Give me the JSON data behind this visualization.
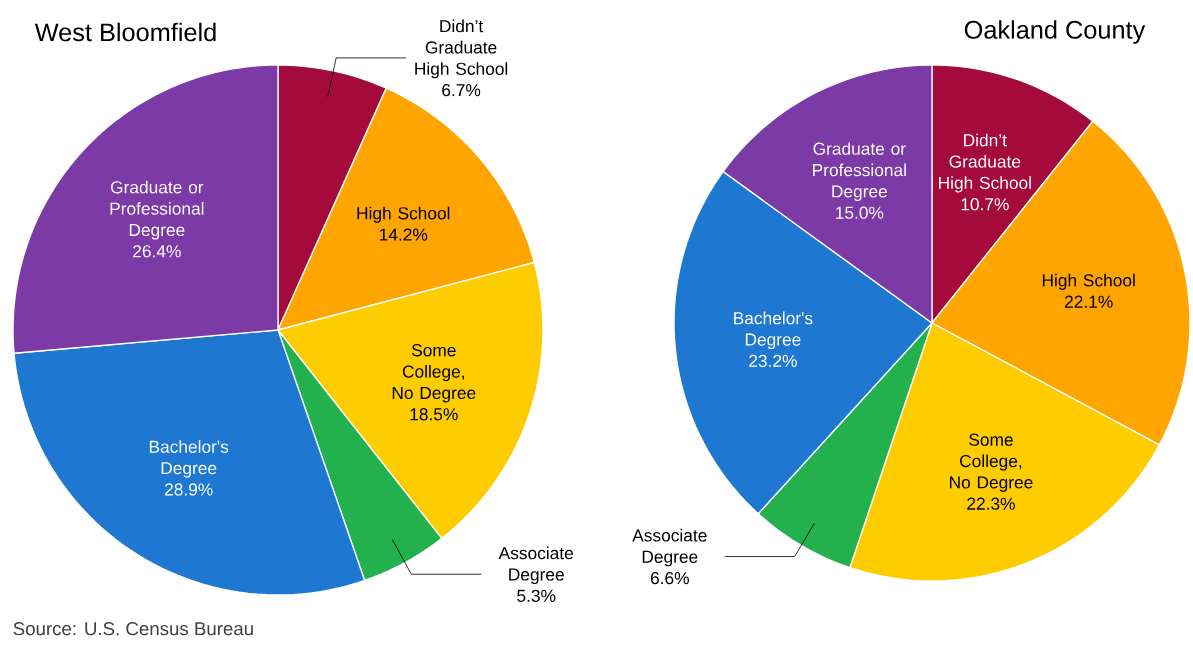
{
  "chart_data": [
    {
      "type": "pie",
      "title": "West Bloomfield",
      "categories": [
        "Didn’t Graduate High School",
        "High School",
        "Some College, No Degree",
        "Associate Degree",
        "Bachelor's Degree",
        "Graduate or Professional Degree"
      ],
      "values": [
        6.7,
        14.2,
        18.5,
        5.3,
        28.9,
        26.4
      ],
      "value_labels": [
        "6.7%",
        "14.2%",
        "18.5%",
        "5.3%",
        "28.9%",
        "26.4%"
      ],
      "colors": [
        "#a50a3c",
        "#ffa500",
        "#ffcc00",
        "#22b14c",
        "#1e78d2",
        "#7b3aa6"
      ],
      "annotations": [
        "Source: U.S. Census Bureau"
      ]
    },
    {
      "type": "pie",
      "title": "Oakland County",
      "categories": [
        "Didn’t Graduate High School",
        "High School",
        "Some College, No Degree",
        "Associate Degree",
        "Bachelor's Degree",
        "Graduate or Professional Degree"
      ],
      "values": [
        10.7,
        22.1,
        22.3,
        6.6,
        23.2,
        15.0
      ],
      "value_labels": [
        "10.7%",
        "22.1%",
        "22.3%",
        "6.6%",
        "23.2%",
        "15.0%"
      ],
      "colors": [
        "#a50a3c",
        "#ffa500",
        "#ffcc00",
        "#22b14c",
        "#1e78d2",
        "#7b3aa6"
      ]
    }
  ]
}
